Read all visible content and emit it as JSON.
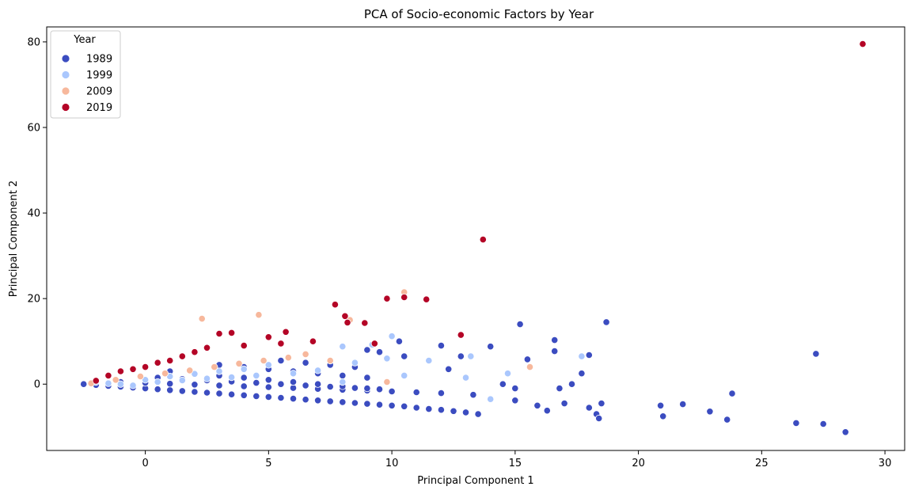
{
  "chart_data": {
    "type": "scatter",
    "title": "PCA of Socio-economic Factors by Year",
    "xlabel": "Principal Component 1",
    "ylabel": "Principal Component 2",
    "xlim": [
      -4.0,
      30.8
    ],
    "ylim": [
      -15.5,
      83.5
    ],
    "xticks": [
      0,
      5,
      10,
      15,
      20,
      25,
      30
    ],
    "yticks": [
      0,
      20,
      40,
      60,
      80
    ],
    "grid": false,
    "legend": {
      "title": "Year",
      "position": "top-left"
    },
    "series": [
      {
        "name": "1989",
        "color": "#3b4cc0",
        "points": [
          [
            -2.5,
            0.0
          ],
          [
            -2.0,
            -0.2
          ],
          [
            -1.5,
            -0.4
          ],
          [
            -1.0,
            -0.6
          ],
          [
            -0.5,
            -0.8
          ],
          [
            0.0,
            -1.0
          ],
          [
            0.5,
            -1.2
          ],
          [
            1.0,
            -1.4
          ],
          [
            1.5,
            -1.6
          ],
          [
            2.0,
            -1.8
          ],
          [
            2.5,
            -2.0
          ],
          [
            3.0,
            -2.2
          ],
          [
            3.5,
            -2.4
          ],
          [
            4.0,
            -2.6
          ],
          [
            4.5,
            -2.8
          ],
          [
            5.0,
            -3.0
          ],
          [
            5.5,
            -3.2
          ],
          [
            6.0,
            -3.4
          ],
          [
            6.5,
            -3.6
          ],
          [
            7.0,
            -3.8
          ],
          [
            7.5,
            -4.0
          ],
          [
            8.0,
            -4.2
          ],
          [
            8.5,
            -4.4
          ],
          [
            9.0,
            -4.6
          ],
          [
            9.5,
            -4.8
          ],
          [
            10.0,
            -5.0
          ],
          [
            10.5,
            -5.2
          ],
          [
            11.0,
            -5.5
          ],
          [
            11.5,
            -5.8
          ],
          [
            12.0,
            -6.0
          ],
          [
            12.5,
            -6.3
          ],
          [
            13.0,
            -6.6
          ],
          [
            -1.0,
            0.5
          ],
          [
            0.0,
            0.3
          ],
          [
            1.0,
            0.1
          ],
          [
            2.0,
            -0.1
          ],
          [
            3.0,
            -0.3
          ],
          [
            4.0,
            -0.5
          ],
          [
            5.0,
            -0.7
          ],
          [
            6.0,
            -0.9
          ],
          [
            7.0,
            -1.1
          ],
          [
            8.0,
            -1.3
          ],
          [
            9.0,
            -1.5
          ],
          [
            10.0,
            -1.7
          ],
          [
            11.0,
            -1.9
          ],
          [
            12.0,
            -2.1
          ],
          [
            0.5,
            1.5
          ],
          [
            1.5,
            1.2
          ],
          [
            2.5,
            0.9
          ],
          [
            3.5,
            0.6
          ],
          [
            4.5,
            0.3
          ],
          [
            5.5,
            0.0
          ],
          [
            6.5,
            -0.3
          ],
          [
            7.5,
            -0.6
          ],
          [
            8.5,
            -0.9
          ],
          [
            9.5,
            -1.2
          ],
          [
            1.0,
            3.0
          ],
          [
            2.0,
            2.5
          ],
          [
            3.0,
            2.0
          ],
          [
            4.0,
            1.5
          ],
          [
            5.0,
            1.0
          ],
          [
            6.0,
            0.5
          ],
          [
            7.0,
            0.0
          ],
          [
            8.0,
            -0.5
          ],
          [
            9.0,
            -1.0
          ],
          [
            3.0,
            4.5
          ],
          [
            4.0,
            4.0
          ],
          [
            5.0,
            3.5
          ],
          [
            6.0,
            3.0
          ],
          [
            7.0,
            2.5
          ],
          [
            8.0,
            2.0
          ],
          [
            9.0,
            1.5
          ],
          [
            5.5,
            5.5
          ],
          [
            6.5,
            5.0
          ],
          [
            7.5,
            4.5
          ],
          [
            8.5,
            4.0
          ],
          [
            9.0,
            8.0
          ],
          [
            9.5,
            7.5
          ],
          [
            10.5,
            6.5
          ],
          [
            10.3,
            10.0
          ],
          [
            11.5,
            5.5
          ],
          [
            12.0,
            9.0
          ],
          [
            12.3,
            3.5
          ],
          [
            12.8,
            6.5
          ],
          [
            13.3,
            -2.5
          ],
          [
            13.5,
            -7.0
          ],
          [
            14.0,
            8.8
          ],
          [
            14.5,
            0.0
          ],
          [
            15.0,
            -1.0
          ],
          [
            15.2,
            14.0
          ],
          [
            15.5,
            5.8
          ],
          [
            15.0,
            -3.8
          ],
          [
            15.9,
            -5.0
          ],
          [
            16.3,
            -6.2
          ],
          [
            16.6,
            10.3
          ],
          [
            16.6,
            7.7
          ],
          [
            16.8,
            -1.0
          ],
          [
            17.0,
            -4.5
          ],
          [
            17.3,
            0.0
          ],
          [
            17.7,
            2.5
          ],
          [
            18.0,
            6.8
          ],
          [
            18.0,
            -5.5
          ],
          [
            18.3,
            -7.0
          ],
          [
            18.4,
            -8.0
          ],
          [
            18.5,
            -4.5
          ],
          [
            18.7,
            14.5
          ],
          [
            20.9,
            -5.0
          ],
          [
            21.0,
            -7.5
          ],
          [
            21.8,
            -4.7
          ],
          [
            22.9,
            -6.4
          ],
          [
            23.6,
            -8.3
          ],
          [
            23.8,
            -2.2
          ],
          [
            26.4,
            -9.1
          ],
          [
            27.2,
            7.1
          ],
          [
            27.5,
            -9.3
          ],
          [
            28.4,
            -11.2
          ]
        ]
      },
      {
        "name": "1999",
        "color": "#aac7fd",
        "points": [
          [
            -2.0,
            0.5
          ],
          [
            -1.5,
            0.2
          ],
          [
            -1.0,
            0.0
          ],
          [
            -0.5,
            -0.3
          ],
          [
            0.0,
            1.0
          ],
          [
            0.5,
            0.5
          ],
          [
            1.0,
            1.8
          ],
          [
            1.5,
            0.9
          ],
          [
            2.0,
            2.4
          ],
          [
            2.5,
            1.3
          ],
          [
            3.0,
            3.0
          ],
          [
            3.5,
            1.6
          ],
          [
            4.0,
            3.5
          ],
          [
            4.5,
            2.0
          ],
          [
            5.0,
            4.5
          ],
          [
            6.0,
            2.5
          ],
          [
            7.0,
            3.2
          ],
          [
            8.0,
            0.5
          ],
          [
            8.0,
            8.8
          ],
          [
            8.5,
            5.0
          ],
          [
            9.2,
            9.2
          ],
          [
            9.8,
            6.0
          ],
          [
            10.0,
            11.2
          ],
          [
            10.5,
            2.0
          ],
          [
            11.5,
            5.5
          ],
          [
            13.0,
            1.5
          ],
          [
            13.2,
            6.5
          ],
          [
            14.0,
            -3.5
          ],
          [
            14.7,
            2.5
          ],
          [
            17.7,
            6.5
          ]
        ]
      },
      {
        "name": "2009",
        "color": "#f7b89c",
        "points": [
          [
            -2.2,
            0.2
          ],
          [
            -1.2,
            1.0
          ],
          [
            -0.2,
            1.8
          ],
          [
            0.8,
            2.5
          ],
          [
            1.8,
            3.2
          ],
          [
            2.3,
            15.3
          ],
          [
            2.8,
            4.0
          ],
          [
            3.8,
            4.8
          ],
          [
            4.6,
            16.2
          ],
          [
            4.8,
            5.5
          ],
          [
            5.8,
            6.2
          ],
          [
            6.5,
            7.0
          ],
          [
            7.5,
            5.5
          ],
          [
            8.3,
            15.0
          ],
          [
            9.8,
            0.5
          ],
          [
            10.5,
            21.5
          ],
          [
            15.6,
            4.0
          ]
        ]
      },
      {
        "name": "2019",
        "color": "#b40426",
        "points": [
          [
            -2.0,
            0.8
          ],
          [
            -1.5,
            2.0
          ],
          [
            -1.0,
            3.0
          ],
          [
            -0.5,
            3.5
          ],
          [
            0.0,
            4.0
          ],
          [
            0.5,
            5.0
          ],
          [
            1.0,
            5.5
          ],
          [
            1.5,
            6.5
          ],
          [
            2.0,
            7.5
          ],
          [
            2.5,
            8.5
          ],
          [
            3.0,
            11.8
          ],
          [
            3.5,
            12.0
          ],
          [
            4.0,
            9.0
          ],
          [
            5.0,
            11.0
          ],
          [
            5.5,
            9.5
          ],
          [
            5.7,
            12.2
          ],
          [
            6.8,
            10.0
          ],
          [
            7.7,
            18.6
          ],
          [
            8.1,
            15.9
          ],
          [
            8.2,
            14.4
          ],
          [
            8.9,
            14.3
          ],
          [
            9.3,
            9.5
          ],
          [
            9.8,
            20.0
          ],
          [
            10.5,
            20.3
          ],
          [
            11.4,
            19.8
          ],
          [
            12.8,
            11.5
          ],
          [
            13.7,
            33.8
          ],
          [
            29.1,
            79.5
          ]
        ]
      }
    ]
  }
}
